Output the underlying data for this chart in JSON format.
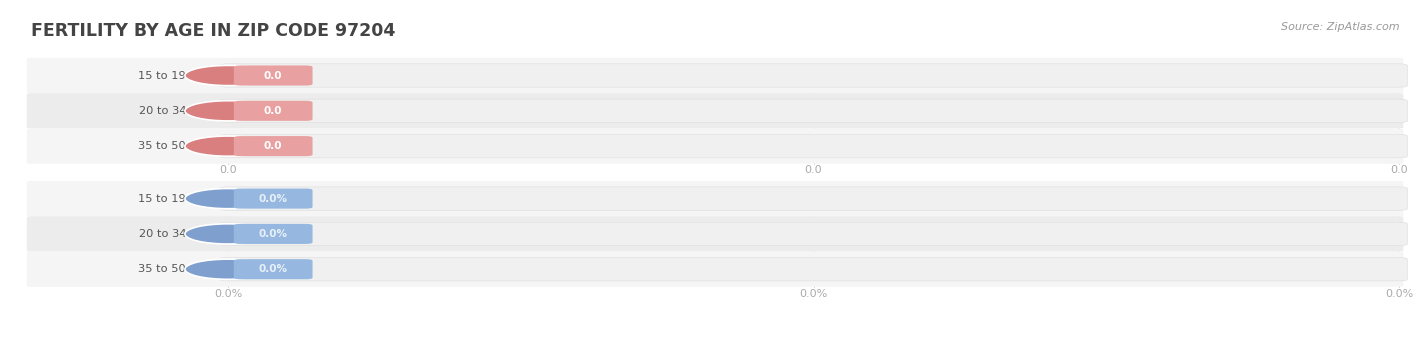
{
  "title": "FERTILITY BY AGE IN ZIP CODE 97204",
  "source": "Source: ZipAtlas.com",
  "top_rows": [
    {
      "label": "15 to 19 years",
      "value": 0.0,
      "display": "0.0"
    },
    {
      "label": "20 to 34 years",
      "value": 0.0,
      "display": "0.0"
    },
    {
      "label": "35 to 50 years",
      "value": 0.0,
      "display": "0.0"
    }
  ],
  "bottom_rows": [
    {
      "label": "15 to 19 years",
      "value": 0.0,
      "display": "0.0%"
    },
    {
      "label": "20 to 34 years",
      "value": 0.0,
      "display": "0.0%"
    },
    {
      "label": "35 to 50 years",
      "value": 0.0,
      "display": "0.0%"
    }
  ],
  "top_bar_color": "#e8a0a0",
  "top_circle_color": "#d97f7f",
  "top_label_color": "#555555",
  "top_value_color": "#ffffff",
  "bottom_bar_color": "#96b8e0",
  "bottom_circle_color": "#7fa0ce",
  "bottom_label_color": "#555555",
  "bottom_value_color": "#e8f0f8",
  "title_color": "#444444",
  "source_color": "#999999",
  "axis_tick_color": "#aaaaaa",
  "top_xticks": [
    "0.0",
    "0.0",
    "0.0"
  ],
  "bottom_xticks": [
    "0.0%",
    "0.0%",
    "0.0%"
  ],
  "bg_color": "#ffffff",
  "row_bg_even": "#f5f5f5",
  "row_bg_odd": "#ececec"
}
